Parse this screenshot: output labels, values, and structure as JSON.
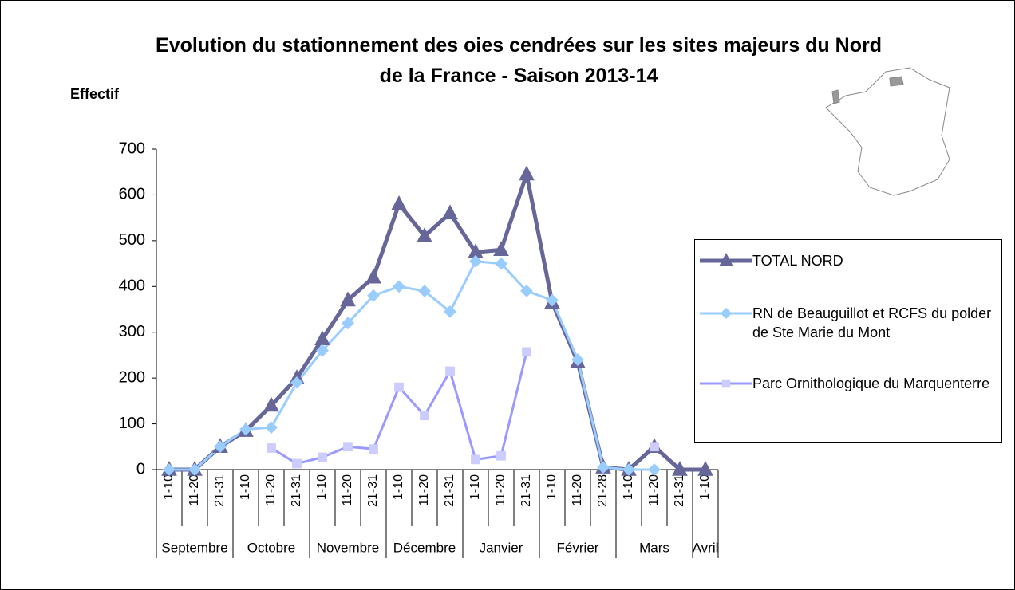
{
  "chart_data": {
    "type": "line",
    "title": "Evolution du stationnement des oies cendrées sur les sites majeurs du Nord de la France - Saison 2013-14",
    "y_label": "Effectif",
    "categories": [
      "1-10",
      "11-20",
      "21-31",
      "1-10",
      "11-20",
      "21-31",
      "1-10",
      "11-20",
      "21-31",
      "1-10",
      "11-20",
      "21-31",
      "1-10",
      "11-20",
      "21-31",
      "1-10",
      "11-20",
      "21-28",
      "1-10",
      "11-20",
      "21-31",
      "1-10"
    ],
    "groups": [
      {
        "label": "Septembre",
        "size": 3
      },
      {
        "label": "Octobre",
        "size": 3
      },
      {
        "label": "Novembre",
        "size": 3
      },
      {
        "label": "Décembre",
        "size": 3
      },
      {
        "label": "Janvier",
        "size": 3
      },
      {
        "label": "Février",
        "size": 3
      },
      {
        "label": "Mars",
        "size": 3
      },
      {
        "label": "Avril",
        "size": 1
      }
    ],
    "series": [
      {
        "name": "TOTAL NORD",
        "color": "#666699",
        "marker": "triangle",
        "values": [
          0,
          0,
          50,
          85,
          140,
          200,
          285,
          370,
          420,
          580,
          510,
          560,
          475,
          480,
          645,
          365,
          235,
          5,
          0,
          50,
          0,
          0
        ]
      },
      {
        "name": "RN de Beauguillot et RCFS du polder de Ste Marie du Mont",
        "color": "#99ccff",
        "marker": "diamond",
        "values": [
          0,
          0,
          50,
          88,
          92,
          190,
          260,
          320,
          380,
          400,
          390,
          345,
          455,
          450,
          390,
          370,
          240,
          5,
          0,
          0,
          null,
          null
        ]
      },
      {
        "name": "Parc Ornithologique du Marquenterre",
        "color": "#9999ff",
        "marker": "square",
        "values": [
          null,
          null,
          null,
          null,
          47,
          13,
          27,
          50,
          45,
          180,
          118,
          215,
          22,
          30,
          257,
          null,
          null,
          null,
          null,
          50,
          null,
          null
        ]
      }
    ],
    "ylim": [
      0,
      700
    ],
    "yticks": [
      0,
      100,
      200,
      300,
      400,
      500,
      600,
      700
    ],
    "grid": false,
    "legend": "right"
  }
}
